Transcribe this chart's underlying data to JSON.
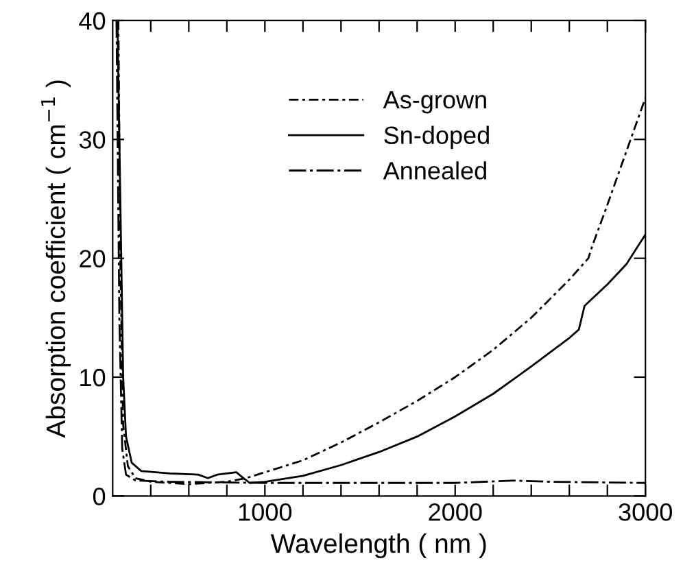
{
  "chart_data": {
    "type": "line",
    "xlabel": "Wavelength ( nm )",
    "ylabel": "Absorption coefficient ( cm$^{−1}$ )",
    "xlim": [
      200,
      3000
    ],
    "ylim": [
      0,
      40
    ],
    "xticks": [
      {
        "value": 400,
        "label": null
      },
      {
        "value": 600,
        "label": null
      },
      {
        "value": 800,
        "label": null
      },
      1000,
      {
        "value": 1200,
        "label": null
      },
      {
        "value": 1400,
        "label": null
      },
      {
        "value": 1600,
        "label": null
      },
      {
        "value": 1800,
        "label": null
      },
      2000,
      {
        "value": 2200,
        "label": null
      },
      {
        "value": 2400,
        "label": null
      },
      {
        "value": 2600,
        "label": null
      },
      {
        "value": 2800,
        "label": null
      },
      3000
    ],
    "yticks": [
      0,
      10,
      20,
      30,
      40
    ],
    "grid": false,
    "legend": "top",
    "marker": "none",
    "series": [
      {
        "name": "As-grown",
        "color": "#000000",
        "line_style": "dashdot",
        "x": [
          230,
          240,
          255,
          280,
          320,
          400,
          600,
          800,
          900,
          1000,
          1200,
          1400,
          1600,
          1800,
          2000,
          2200,
          2400,
          2600,
          2700,
          2720,
          2800,
          2900,
          3000
        ],
        "values": [
          40,
          20,
          6,
          2.5,
          1.5,
          1.2,
          1.0,
          1.2,
          1.5,
          2.0,
          3.0,
          4.5,
          6.2,
          8.0,
          10.0,
          12.3,
          15.0,
          18.2,
          20.0,
          21.0,
          24.5,
          29.0,
          33.5
        ]
      },
      {
        "name": "Sn-doped",
        "color": "#000000",
        "line_style": "solid",
        "x": [
          225,
          240,
          255,
          270,
          300,
          350,
          500,
          650,
          700,
          750,
          850,
          880,
          920,
          1000,
          1200,
          1400,
          1600,
          1800,
          2000,
          2200,
          2400,
          2600,
          2650,
          2680,
          2800,
          2900,
          3000
        ],
        "values": [
          40,
          25,
          10,
          5,
          2.8,
          2.1,
          1.9,
          1.8,
          1.5,
          1.8,
          2.0,
          1.6,
          1.1,
          1.2,
          1.7,
          2.6,
          3.7,
          5.0,
          6.7,
          8.6,
          10.9,
          13.3,
          14.0,
          16.0,
          17.8,
          19.5,
          22.0
        ]
      },
      {
        "name": "Annealed",
        "color": "#000000",
        "line_style": "dashed",
        "x": [
          220,
          235,
          250,
          270,
          320,
          500,
          1000,
          1500,
          2000,
          2300,
          2500,
          3000
        ],
        "values": [
          40,
          15,
          4,
          1.8,
          1.3,
          1.2,
          1.1,
          1.1,
          1.1,
          1.3,
          1.2,
          1.1
        ]
      }
    ]
  }
}
